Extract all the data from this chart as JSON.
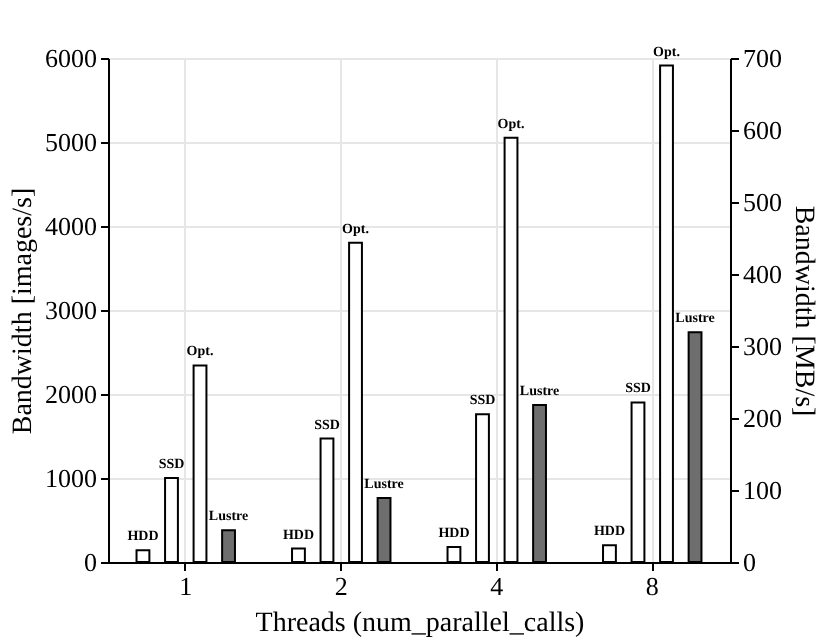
{
  "chart_data": {
    "type": "bar",
    "xlabel": "Threads (num_parallel_calls)",
    "ylabel": "Bandwidth [images/s]",
    "y2label": "Bandwidth [MB/s]",
    "categories": [
      "1",
      "2",
      "4",
      "8"
    ],
    "series": [
      {
        "name": "HDD",
        "color": "#ffffff",
        "values": [
          140,
          160,
          180,
          200
        ]
      },
      {
        "name": "SSD",
        "color": "#ffffff",
        "values": [
          1000,
          1470,
          1760,
          1900
        ]
      },
      {
        "name": "Opt.",
        "color": "#ffffff",
        "values": [
          2340,
          3800,
          5050,
          5910
        ]
      },
      {
        "name": "Lustre",
        "color": "#6e6e6e",
        "axis": "y2",
        "values": [
          44,
          89,
          218,
          319
        ]
      }
    ],
    "ylim": [
      0,
      6000
    ],
    "yticks": [
      0,
      1000,
      2000,
      3000,
      4000,
      5000,
      6000
    ],
    "y2lim": [
      0,
      700
    ],
    "y2ticks": [
      0,
      100,
      200,
      300,
      400,
      500,
      600,
      700
    ],
    "grid": true
  }
}
